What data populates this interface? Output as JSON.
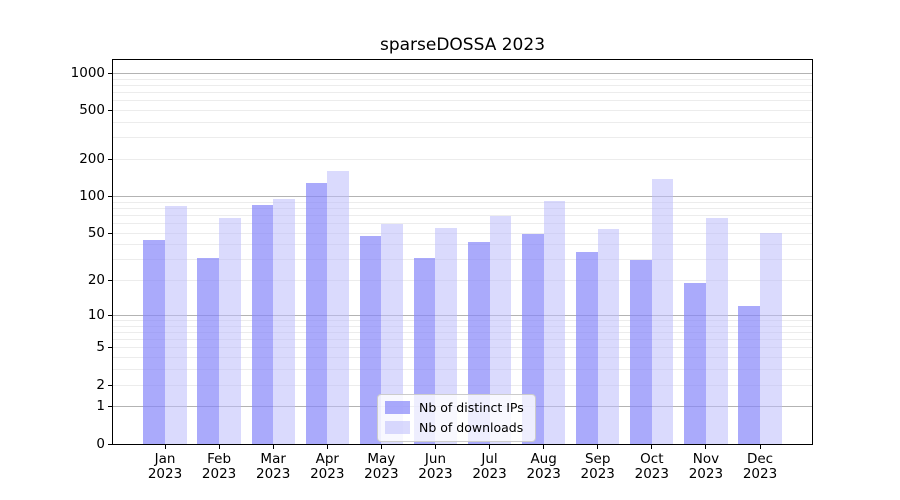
{
  "chart_data": {
    "type": "bar",
    "title": "sparseDOSSA 2023",
    "categories": [
      "Jan 2023",
      "Feb 2023",
      "Mar 2023",
      "Apr 2023",
      "May 2023",
      "Jun 2023",
      "Jul 2023",
      "Aug 2023",
      "Sep 2023",
      "Oct 2023",
      "Nov 2023",
      "Dec 2023"
    ],
    "series": [
      {
        "name": "Nb of distinct IPs",
        "color": "rgba(134,134,250,0.70)",
        "values": [
          44,
          31,
          85,
          130,
          47,
          31,
          42,
          49,
          35,
          30,
          19,
          12
        ]
      },
      {
        "name": "Nb of downloads",
        "color": "rgba(187,187,252,0.55)",
        "values": [
          84,
          66,
          96,
          160,
          60,
          55,
          69,
          92,
          54,
          138,
          66,
          50
        ]
      }
    ],
    "xlabel": "",
    "ylabel": "",
    "yscale": "log1p",
    "y_ticks": [
      0,
      1,
      2,
      5,
      10,
      20,
      50,
      100,
      200,
      500,
      1000
    ],
    "ylim": [
      0,
      1300
    ],
    "grid": {
      "major_color": "#b3b3b3",
      "minor_color": "#ececec",
      "minor_ticks": [
        2,
        3,
        4,
        5,
        6,
        7,
        8,
        9,
        20,
        30,
        40,
        50,
        60,
        70,
        80,
        90,
        200,
        300,
        400,
        500,
        600,
        700,
        800,
        900
      ]
    },
    "legend_position": "lower center"
  }
}
